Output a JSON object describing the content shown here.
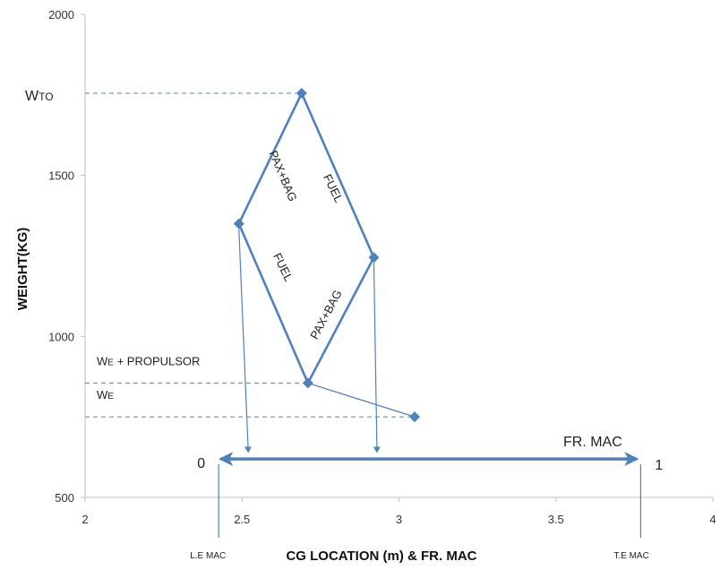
{
  "chart_data": {
    "type": "line",
    "title": "",
    "xlabel": "CG LOCATION (m) & FR. MAC",
    "ylabel": "WEIGHT(KG)",
    "xlim": [
      2,
      4
    ],
    "ylim": [
      500,
      2000
    ],
    "x_ticks": [
      "2",
      "2.5",
      "3",
      "3.5",
      "4"
    ],
    "y_ticks": [
      "500",
      "1000",
      "1500",
      "2000"
    ],
    "grid": false,
    "colors": {
      "series": "#4f81bd",
      "dashed": "#4f81bd",
      "arrow": "#4f81bd"
    },
    "series": [
      {
        "points": [
          {
            "x": 3.05,
            "y": 750
          },
          {
            "x": 2.71,
            "y": 855
          },
          {
            "x": 2.92,
            "y": 1245
          },
          {
            "x": 2.69,
            "y": 1755
          },
          {
            "x": 2.49,
            "y": 1350
          },
          {
            "x": 2.71,
            "y": 855
          }
        ]
      }
    ],
    "reference_lines": [
      {
        "label_main": "W",
        "label_sub": "TO",
        "y": 1755,
        "x_end": 2.69
      },
      {
        "label_main": "W",
        "label_sub": "E",
        "label_suffix": " + PROPULSOR",
        "y": 855,
        "x_end": 2.71
      },
      {
        "label_main": "W",
        "label_sub": "E",
        "label_suffix": "",
        "y": 750,
        "x_end": 3.05
      }
    ],
    "drop_arrows": [
      {
        "x_from": 2.49,
        "y_from": 1350,
        "x_to": 2.52,
        "y_to": 635
      },
      {
        "x_from": 2.92,
        "y_from": 1245,
        "x_to": 2.93,
        "y_to": 635
      }
    ],
    "segment_labels": {
      "pax_bag_upper": "PAX+BAG",
      "fuel_upper": "FUEL",
      "fuel_lower": "FUEL",
      "pax_bag_lower": "PAX+BAG"
    },
    "mac_scale": {
      "title": "FR. MAC",
      "start_label": "0",
      "end_label": "1",
      "x_start": 2.42,
      "x_end": 3.77,
      "y": 625,
      "le_label": "L.E MAC",
      "te_label": "T.E MAC"
    }
  }
}
